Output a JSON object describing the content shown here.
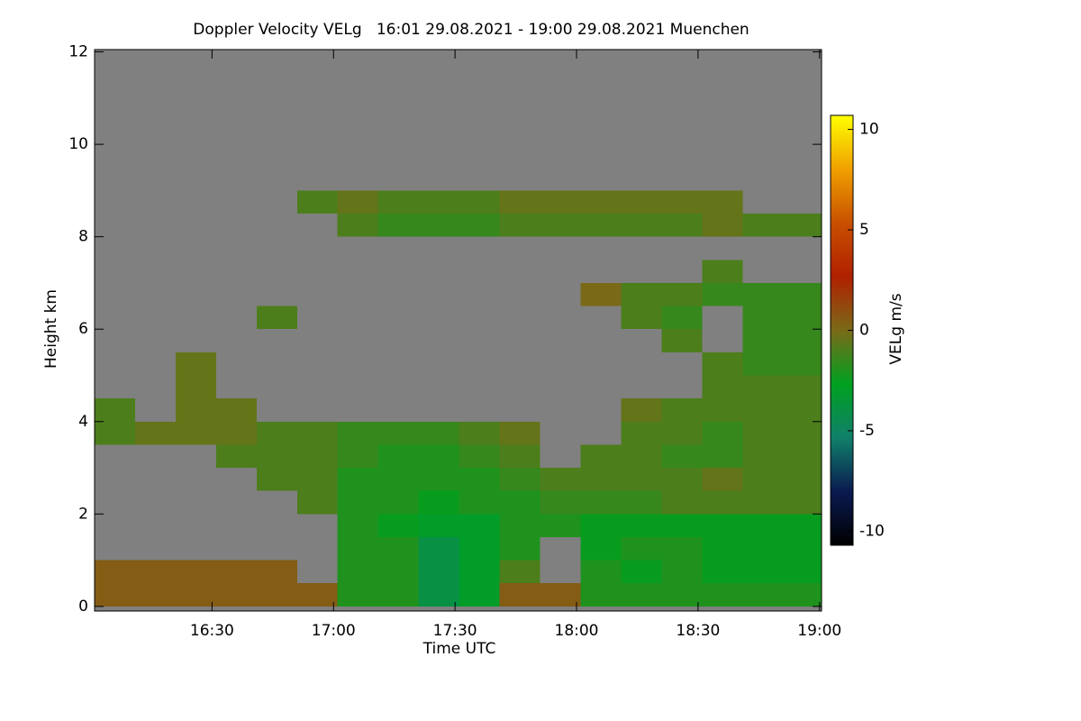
{
  "chart_data": {
    "type": "heatmap",
    "title": "Doppler Velocity VELg   16:01 29.08.2021 - 19:00 29.08.2021 Muenchen",
    "x_label": "Time UTC",
    "y_label": "Height km",
    "x": [
      966,
      976,
      986,
      996,
      1006,
      1016,
      1026,
      1036,
      1046,
      1056,
      1066,
      1076,
      1086,
      1096,
      1106,
      1116,
      1126,
      1136
    ],
    "xlim": [
      961,
      1140.5
    ],
    "xticks": [
      {
        "value": 990,
        "label": "16:30"
      },
      {
        "value": 1020,
        "label": "17:00"
      },
      {
        "value": 1050,
        "label": "17:30"
      },
      {
        "value": 1080,
        "label": "18:00"
      },
      {
        "value": 1110,
        "label": "18:30"
      },
      {
        "value": 1140,
        "label": "19:00"
      }
    ],
    "y": [
      0.25,
      0.75,
      1.25,
      1.75,
      2.25,
      2.75,
      3.25,
      3.75,
      4.25,
      4.75,
      5.25,
      5.75,
      6.25,
      6.75,
      7.25,
      7.75,
      8.25,
      8.75,
      9.25,
      9.75,
      10.25,
      10.75,
      11.25,
      11.75
    ],
    "ylim": [
      -0.1,
      12.05
    ],
    "yticks": [
      0,
      2,
      4,
      6,
      8,
      10,
      12
    ],
    "z": [
      [
        0.5,
        0.5,
        0.5,
        0.5,
        0.5,
        0.5,
        -2,
        -2,
        -4,
        -3,
        0.5,
        0.5,
        -2,
        -2,
        -2,
        -2,
        -2,
        -2
      ],
      [
        0.5,
        0.5,
        0.5,
        0.5,
        0.5,
        null,
        -2,
        -2,
        -4,
        -3,
        -1,
        null,
        -2,
        -2.5,
        -2,
        -2.5,
        -2.5,
        -2.5
      ],
      [
        null,
        null,
        null,
        null,
        null,
        null,
        -2,
        -2,
        -4,
        -3,
        -2,
        null,
        -2.5,
        -2,
        -2,
        -2.5,
        -2.5,
        -2.5
      ],
      [
        null,
        null,
        null,
        null,
        null,
        null,
        -2,
        -2.5,
        -3,
        -3,
        -2,
        -2,
        -2.5,
        -2.5,
        -2.5,
        -2.5,
        -2.5,
        -2.5
      ],
      [
        null,
        null,
        null,
        null,
        null,
        -1,
        -2,
        -2,
        -2.5,
        -2,
        -2,
        -1.5,
        -1.5,
        -1.5,
        -1,
        -1,
        -1,
        -1
      ],
      [
        null,
        null,
        null,
        null,
        -1,
        -1,
        -2,
        -2,
        -2,
        -2,
        -1.5,
        -1,
        -1,
        -1,
        -1,
        -0.5,
        -1,
        -1
      ],
      [
        null,
        null,
        null,
        -1,
        -1,
        -1,
        -1.5,
        -2,
        -2,
        -1.5,
        -1,
        null,
        -1,
        -1,
        -1.5,
        -1.5,
        -1,
        -1
      ],
      [
        -1,
        -0.5,
        -0.5,
        -0.5,
        -1,
        -1,
        -1.5,
        -1.5,
        -1.5,
        -1,
        -0.5,
        null,
        null,
        -1,
        -1,
        -1.5,
        -1,
        -1
      ],
      [
        -1,
        null,
        -0.5,
        -0.5,
        null,
        null,
        null,
        null,
        null,
        null,
        null,
        null,
        null,
        -0.5,
        -1,
        -1,
        -1,
        -1
      ],
      [
        null,
        null,
        -0.5,
        null,
        null,
        null,
        null,
        null,
        null,
        null,
        null,
        null,
        null,
        null,
        null,
        -1,
        -1,
        -1
      ],
      [
        null,
        null,
        -0.5,
        null,
        null,
        null,
        null,
        null,
        null,
        null,
        null,
        null,
        null,
        null,
        null,
        -1,
        -1.5,
        -1.5
      ],
      [
        null,
        null,
        null,
        null,
        null,
        null,
        null,
        null,
        null,
        null,
        null,
        null,
        null,
        null,
        -1,
        null,
        -1.5,
        -1.5
      ],
      [
        null,
        null,
        null,
        null,
        -1,
        null,
        null,
        null,
        null,
        null,
        null,
        null,
        null,
        -1,
        -1.5,
        null,
        -1.5,
        -1.5
      ],
      [
        null,
        null,
        null,
        null,
        null,
        null,
        null,
        null,
        null,
        null,
        null,
        null,
        0,
        -1,
        -1,
        -1.5,
        -1.5,
        -1.5
      ],
      [
        null,
        null,
        null,
        null,
        null,
        null,
        null,
        null,
        null,
        null,
        null,
        null,
        null,
        null,
        null,
        -1,
        null,
        null
      ],
      [
        null,
        null,
        null,
        null,
        null,
        null,
        null,
        null,
        null,
        null,
        null,
        null,
        null,
        null,
        null,
        null,
        null,
        null
      ],
      [
        null,
        null,
        null,
        null,
        null,
        null,
        -1,
        -1.5,
        -1.5,
        -1.5,
        -1,
        -1,
        -1,
        -1,
        -1,
        -0.5,
        -1,
        -1
      ],
      [
        null,
        null,
        null,
        null,
        null,
        -1,
        -0.5,
        -1,
        -1,
        -1,
        -0.5,
        -0.5,
        -0.5,
        -0.5,
        -0.5,
        -0.5,
        null,
        null
      ],
      [
        null,
        null,
        null,
        null,
        null,
        null,
        null,
        null,
        null,
        null,
        null,
        null,
        null,
        null,
        null,
        null,
        null,
        null
      ],
      [
        null,
        null,
        null,
        null,
        null,
        null,
        null,
        null,
        null,
        null,
        null,
        null,
        null,
        null,
        null,
        null,
        null,
        null
      ],
      [
        null,
        null,
        null,
        null,
        null,
        null,
        null,
        null,
        null,
        null,
        null,
        null,
        null,
        null,
        null,
        null,
        null,
        null
      ],
      [
        null,
        null,
        null,
        null,
        null,
        null,
        null,
        null,
        null,
        null,
        null,
        null,
        null,
        null,
        null,
        null,
        null,
        null
      ],
      [
        null,
        null,
        null,
        null,
        null,
        null,
        null,
        null,
        null,
        null,
        null,
        null,
        null,
        null,
        null,
        null,
        null,
        null
      ],
      [
        null,
        null,
        null,
        null,
        null,
        null,
        null,
        null,
        null,
        null,
        null,
        null,
        null,
        null,
        null,
        null,
        null,
        null
      ]
    ],
    "background": "#808080",
    "colormap": [
      "#000000",
      "#0a1a50",
      "#10806a",
      "#00a020",
      "#7a6a18",
      "#b02000",
      "#c85000",
      "#f0a000",
      "#ffff00"
    ],
    "colorbar": {
      "label": "VELg m/s",
      "lim": [
        -10.7,
        10.7
      ],
      "ticks": [
        -10,
        -5,
        0,
        5,
        10
      ]
    }
  }
}
